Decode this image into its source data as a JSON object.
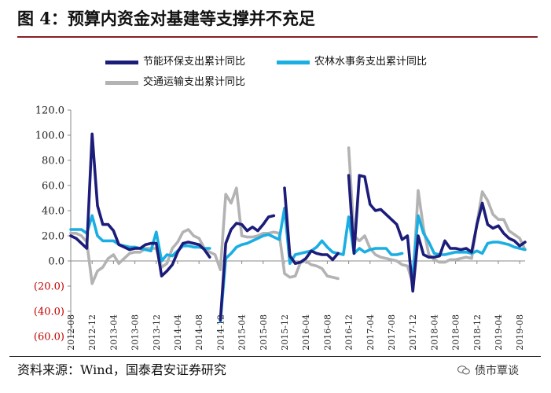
{
  "title": "图 4：预算内资金对基建等支撑并不充足",
  "source": "资料来源：Wind，国泰君安证券研究",
  "watermark": "债市覃谈",
  "colors": {
    "s1": "#1c1c7a",
    "s2": "#1aaee2",
    "s3": "#b3b3b3",
    "title_rule": "#8a1f24"
  },
  "chart_data": {
    "type": "line",
    "title": "",
    "xlabel": "",
    "ylabel": "",
    "ylim": [
      -60,
      120
    ],
    "yticks": [
      120,
      100,
      80,
      60,
      40,
      20,
      0,
      -20,
      -40,
      -60
    ],
    "ytick_labels": [
      "120.0",
      "100.0",
      "80.0",
      "60.0",
      "40.0",
      "20.0",
      "0.0",
      "(20.0)",
      "(40.0)",
      "(60.0)"
    ],
    "negative_tick_color": "#c00000",
    "xtick_labels": [
      "2012-08",
      "2012-12",
      "2013-04",
      "2013-08",
      "2013-12",
      "2014-04",
      "2014-08",
      "2014-12",
      "2015-04",
      "2015-08",
      "2015-12",
      "2016-04",
      "2016-08",
      "2016-12",
      "2017-04",
      "2017-08",
      "2017-12",
      "2018-04",
      "2018-08",
      "2018-12",
      "2019-04",
      "2019-08"
    ],
    "legend_position": "top",
    "grid": false,
    "series": [
      {
        "name": "节能环保支出累计同比",
        "color_key": "s1",
        "points": [
          [
            "2012-08",
            20
          ],
          [
            "2012-09",
            18
          ],
          [
            "2012-10",
            14
          ],
          [
            "2012-11",
            10
          ],
          [
            "2012-12",
            101
          ],
          [
            "2013-01",
            44
          ],
          [
            "2013-02",
            29
          ],
          [
            "2013-03",
            29
          ],
          [
            "2013-04",
            24
          ],
          [
            "2013-05",
            13
          ],
          [
            "2013-06",
            11
          ],
          [
            "2013-07",
            9
          ],
          [
            "2013-08",
            10
          ],
          [
            "2013-09",
            10
          ],
          [
            "2013-10",
            13
          ],
          [
            "2013-11",
            14
          ],
          [
            "2013-12",
            14
          ],
          [
            "2014-01",
            -12
          ],
          [
            "2014-02",
            -8
          ],
          [
            "2014-03",
            -3
          ],
          [
            "2014-04",
            7
          ],
          [
            "2014-05",
            14
          ],
          [
            "2014-06",
            15
          ],
          [
            "2014-07",
            14
          ],
          [
            "2014-08",
            13
          ],
          [
            "2014-09",
            9
          ],
          [
            "2014-10",
            3
          ],
          null,
          [
            "2014-12",
            -47
          ],
          [
            "2015-01",
            14
          ],
          [
            "2015-02",
            25
          ],
          [
            "2015-03",
            30
          ],
          [
            "2015-04",
            29
          ],
          [
            "2015-05",
            24
          ],
          [
            "2015-06",
            27
          ],
          [
            "2015-07",
            24
          ],
          [
            "2015-08",
            29
          ],
          [
            "2015-09",
            35
          ],
          [
            "2015-10",
            36
          ],
          null,
          [
            "2015-12",
            58
          ],
          [
            "2016-01",
            4
          ],
          [
            "2016-02",
            -2
          ],
          [
            "2016-03",
            -1
          ],
          [
            "2016-04",
            2
          ],
          [
            "2016-05",
            8
          ],
          [
            "2016-06",
            6
          ],
          [
            "2016-07",
            5
          ],
          [
            "2016-08",
            5
          ],
          [
            "2016-09",
            1
          ],
          [
            "2016-10",
            6
          ],
          null,
          [
            "2016-12",
            68
          ],
          [
            "2017-01",
            6
          ],
          [
            "2017-02",
            68
          ],
          [
            "2017-03",
            67
          ],
          [
            "2017-04",
            45
          ],
          [
            "2017-05",
            40
          ],
          [
            "2017-06",
            41
          ],
          [
            "2017-07",
            37
          ],
          [
            "2017-08",
            33
          ],
          [
            "2017-09",
            29
          ],
          [
            "2017-10",
            17
          ],
          [
            "2017-11",
            20
          ],
          [
            "2017-12",
            -24
          ],
          [
            "2018-01",
            20
          ],
          [
            "2018-02",
            5
          ],
          [
            "2018-03",
            3
          ],
          [
            "2018-04",
            3
          ],
          [
            "2018-05",
            4
          ],
          [
            "2018-06",
            16
          ],
          [
            "2018-07",
            10
          ],
          [
            "2018-08",
            10
          ],
          [
            "2018-09",
            9
          ],
          [
            "2018-10",
            10
          ],
          [
            "2018-11",
            7
          ],
          [
            "2018-12",
            29
          ],
          [
            "2019-01",
            46
          ],
          [
            "2019-02",
            29
          ],
          [
            "2019-03",
            26
          ],
          [
            "2019-04",
            28
          ],
          [
            "2019-05",
            22
          ],
          [
            "2019-06",
            18
          ],
          [
            "2019-07",
            16
          ],
          [
            "2019-08",
            12
          ],
          [
            "2019-09",
            15
          ]
        ]
      },
      {
        "name": "农林水事务支出累计同比",
        "color_key": "s2",
        "points": [
          [
            "2012-08",
            25
          ],
          [
            "2012-09",
            25
          ],
          [
            "2012-10",
            25
          ],
          [
            "2012-11",
            22
          ],
          [
            "2012-12",
            36
          ],
          [
            "2013-01",
            20
          ],
          [
            "2013-02",
            16
          ],
          [
            "2013-03",
            16
          ],
          [
            "2013-04",
            16
          ],
          [
            "2013-05",
            13
          ],
          [
            "2013-06",
            12
          ],
          [
            "2013-07",
            11
          ],
          [
            "2013-08",
            11
          ],
          [
            "2013-09",
            10
          ],
          [
            "2013-10",
            9
          ],
          [
            "2013-11",
            8
          ],
          [
            "2013-12",
            23
          ],
          [
            "2014-01",
            0
          ],
          [
            "2014-02",
            5
          ],
          [
            "2014-03",
            4
          ],
          [
            "2014-04",
            8
          ],
          [
            "2014-05",
            12
          ],
          [
            "2014-06",
            12
          ],
          [
            "2014-07",
            11
          ],
          [
            "2014-08",
            11
          ],
          [
            "2014-09",
            10
          ],
          [
            "2014-10",
            10
          ],
          null,
          [
            "2014-12",
            -48
          ],
          [
            "2015-01",
            2
          ],
          [
            "2015-02",
            6
          ],
          [
            "2015-03",
            11
          ],
          [
            "2015-04",
            13
          ],
          [
            "2015-05",
            14
          ],
          [
            "2015-06",
            16
          ],
          [
            "2015-07",
            18
          ],
          [
            "2015-08",
            20
          ],
          [
            "2015-09",
            21
          ],
          [
            "2015-10",
            19
          ],
          [
            "2015-11",
            17
          ],
          [
            "2015-12",
            42
          ],
          [
            "2016-01",
            -2
          ],
          [
            "2016-02",
            5
          ],
          [
            "2016-03",
            6
          ],
          [
            "2016-04",
            7
          ],
          [
            "2016-05",
            8
          ],
          [
            "2016-06",
            11
          ],
          [
            "2016-07",
            16
          ],
          [
            "2016-08",
            11
          ],
          [
            "2016-09",
            7
          ],
          [
            "2016-10",
            6
          ],
          [
            "2016-11",
            5
          ],
          [
            "2016-12",
            35
          ],
          [
            "2017-01",
            6
          ],
          [
            "2017-02",
            10
          ],
          [
            "2017-03",
            7
          ],
          [
            "2017-04",
            9
          ],
          [
            "2017-05",
            10
          ],
          [
            "2017-06",
            10
          ],
          [
            "2017-07",
            10
          ],
          [
            "2017-08",
            5
          ],
          [
            "2017-09",
            5
          ],
          [
            "2017-10",
            6
          ],
          null,
          [
            "2017-12",
            -11
          ],
          [
            "2018-01",
            36
          ],
          [
            "2018-02",
            22
          ],
          [
            "2018-03",
            15
          ],
          [
            "2018-04",
            6
          ],
          [
            "2018-05",
            5
          ],
          [
            "2018-06",
            5
          ],
          [
            "2018-07",
            6
          ],
          [
            "2018-08",
            7
          ],
          [
            "2018-09",
            7
          ],
          [
            "2018-10",
            7
          ],
          [
            "2018-11",
            6
          ],
          [
            "2018-12",
            8
          ],
          [
            "2019-01",
            6
          ],
          [
            "2019-02",
            14
          ],
          [
            "2019-03",
            15
          ],
          [
            "2019-04",
            15
          ],
          [
            "2019-05",
            14
          ],
          [
            "2019-06",
            13
          ],
          [
            "2019-07",
            11
          ],
          [
            "2019-08",
            10
          ],
          [
            "2019-09",
            9
          ]
        ]
      },
      {
        "name": "交通运输支出累计同比",
        "color_key": "s3",
        "points": [
          [
            "2012-08",
            22
          ],
          [
            "2012-09",
            22
          ],
          [
            "2012-10",
            20
          ],
          [
            "2012-11",
            15
          ],
          [
            "2012-12",
            -18
          ],
          [
            "2013-01",
            -8
          ],
          [
            "2013-02",
            -5
          ],
          [
            "2013-03",
            2
          ],
          [
            "2013-04",
            5
          ],
          [
            "2013-05",
            -2
          ],
          [
            "2013-06",
            2
          ],
          [
            "2013-07",
            6
          ],
          [
            "2013-08",
            7
          ],
          [
            "2013-09",
            7
          ],
          [
            "2013-10",
            10
          ],
          [
            "2013-11",
            10
          ],
          [
            "2013-12",
            10
          ],
          [
            "2014-01",
            -5
          ],
          [
            "2014-02",
            -2
          ],
          [
            "2014-03",
            10
          ],
          [
            "2014-04",
            15
          ],
          [
            "2014-05",
            23
          ],
          [
            "2014-06",
            25
          ],
          [
            "2014-07",
            20
          ],
          [
            "2014-08",
            18
          ],
          [
            "2014-09",
            10
          ],
          [
            "2014-10",
            7
          ],
          [
            "2014-11",
            5
          ],
          [
            "2014-12",
            -7
          ],
          [
            "2015-01",
            53
          ],
          [
            "2015-02",
            46
          ],
          [
            "2015-03",
            58
          ],
          [
            "2015-04",
            20
          ],
          [
            "2015-05",
            19
          ],
          [
            "2015-06",
            19
          ],
          [
            "2015-07",
            20
          ],
          [
            "2015-08",
            22
          ],
          [
            "2015-09",
            22
          ],
          [
            "2015-10",
            23
          ],
          [
            "2015-11",
            22
          ],
          [
            "2015-12",
            -10
          ],
          [
            "2016-01",
            -13
          ],
          [
            "2016-02",
            -12
          ],
          [
            "2016-03",
            -1
          ],
          [
            "2016-04",
            0
          ],
          [
            "2016-05",
            -3
          ],
          [
            "2016-06",
            -4
          ],
          [
            "2016-07",
            -6
          ],
          [
            "2016-08",
            -12
          ],
          [
            "2016-09",
            -13
          ],
          [
            "2016-10",
            -14
          ],
          null,
          [
            "2016-12",
            90
          ],
          [
            "2017-01",
            20
          ],
          [
            "2017-02",
            16
          ],
          [
            "2017-03",
            20
          ],
          [
            "2017-04",
            10
          ],
          [
            "2017-05",
            5
          ],
          [
            "2017-06",
            3
          ],
          [
            "2017-07",
            2
          ],
          [
            "2017-08",
            1
          ],
          [
            "2017-09",
            0
          ],
          [
            "2017-10",
            -3
          ],
          [
            "2017-11",
            -4
          ],
          [
            "2017-12",
            -18
          ],
          [
            "2018-01",
            56
          ],
          [
            "2018-02",
            26
          ],
          [
            "2018-03",
            5
          ],
          [
            "2018-04",
            1
          ],
          [
            "2018-05",
            -1
          ],
          [
            "2018-06",
            -1
          ],
          [
            "2018-07",
            1
          ],
          [
            "2018-08",
            1
          ],
          [
            "2018-09",
            2
          ],
          [
            "2018-10",
            3
          ],
          [
            "2018-11",
            2
          ],
          [
            "2018-12",
            30
          ],
          [
            "2019-01",
            55
          ],
          [
            "2019-02",
            48
          ],
          [
            "2019-03",
            37
          ],
          [
            "2019-04",
            33
          ],
          [
            "2019-05",
            33
          ],
          [
            "2019-06",
            24
          ],
          [
            "2019-07",
            21
          ],
          [
            "2019-08",
            18
          ],
          [
            "2019-09",
            9
          ]
        ]
      }
    ]
  }
}
